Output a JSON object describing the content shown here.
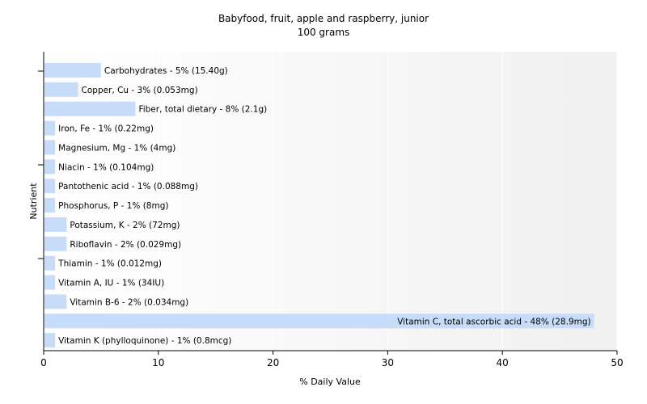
{
  "chart_data": {
    "type": "bar",
    "orientation": "horizontal",
    "title": "Babyfood, fruit, apple and raspberry,  junior",
    "subtitle": "100 grams",
    "xlabel": "% Daily Value",
    "ylabel": "Nutrient",
    "xlim": [
      0,
      50
    ],
    "xticks": [
      "0",
      "10",
      "20",
      "30",
      "40",
      "50"
    ],
    "grid": true,
    "legend": "none",
    "bar_color": "#c6dcf9",
    "categories": [
      "Carbohydrates",
      "Copper, Cu",
      "Fiber, total dietary",
      "Iron, Fe",
      "Magnesium, Mg",
      "Niacin",
      "Pantothenic acid",
      "Phosphorus, P",
      "Potassium, K",
      "Riboflavin",
      "Thiamin",
      "Vitamin A, IU",
      "Vitamin B-6",
      "Vitamin C, total ascorbic acid",
      "Vitamin K (phylloquinone)"
    ],
    "values": [
      5,
      3,
      8,
      1,
      1,
      1,
      1,
      1,
      2,
      2,
      1,
      1,
      2,
      48,
      1
    ],
    "labels": [
      "Carbohydrates - 5% (15.40g)",
      "Copper, Cu - 3% (0.053mg)",
      "Fiber, total dietary - 8% (2.1g)",
      "Iron, Fe - 1% (0.22mg)",
      "Magnesium, Mg - 1% (4mg)",
      "Niacin - 1% (0.104mg)",
      "Pantothenic acid - 1% (0.088mg)",
      "Phosphorus, P - 1% (8mg)",
      "Potassium, K - 2% (72mg)",
      "Riboflavin - 2% (0.029mg)",
      "Thiamin - 1% (0.012mg)",
      "Vitamin A, IU - 1% (34IU)",
      "Vitamin B-6 - 2% (0.034mg)",
      "Vitamin C, total ascorbic acid - 48% (28.9mg)",
      "Vitamin K (phylloquinone) - 1% (0.8mcg)"
    ]
  }
}
